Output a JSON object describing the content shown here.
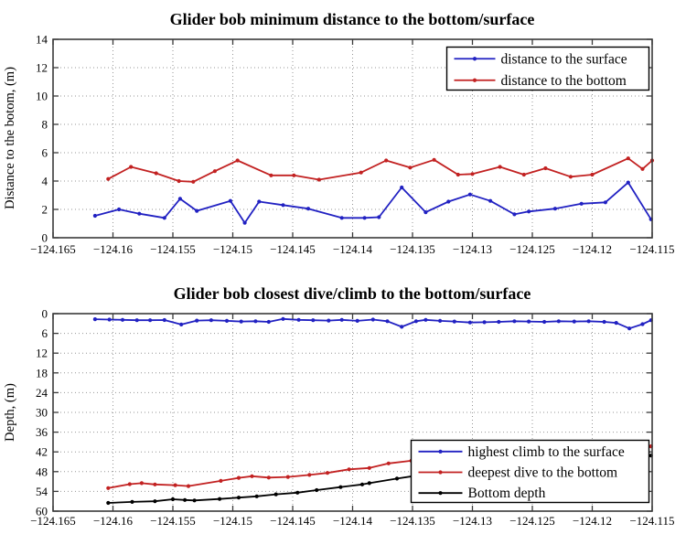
{
  "figure": {
    "background": "#ffffff",
    "title_color": "#821616",
    "frame_color": "#3a3a3a",
    "grid_color": "#969696"
  },
  "chart_data": [
    {
      "type": "line",
      "title": "Glider bob minimum distance to the bottom/surface",
      "xlabel": "",
      "ylabel": "Distance to the botom, (m)",
      "xlim": [
        -124.165,
        -124.115
      ],
      "ylim": [
        0,
        14
      ],
      "y_reversed": false,
      "grid": "dotted",
      "legend_position": "top-right",
      "xticks": [
        -124.165,
        -124.16,
        -124.155,
        -124.15,
        -124.145,
        -124.14,
        -124.135,
        -124.13,
        -124.125,
        -124.12,
        -124.115
      ],
      "xticklabels": [
        "−124.165",
        "−124.16",
        "−124.155",
        "−124.15",
        "−124.145",
        "−124.14",
        "−124.135",
        "−124.13",
        "−124.125",
        "−124.12",
        "−124.115"
      ],
      "yticks": [
        0,
        2,
        4,
        6,
        8,
        10,
        12,
        14
      ],
      "yticklabels": [
        "0",
        "2",
        "4",
        "6",
        "8",
        "10",
        "12",
        "14"
      ],
      "series": [
        {
          "name": "distance to the surface",
          "color": "#2121C2",
          "points": [
            [
              -124.1615,
              1.55
            ],
            [
              -124.1595,
              2.0
            ],
            [
              -124.1578,
              1.7
            ],
            [
              -124.1557,
              1.4
            ],
            [
              -124.1544,
              2.75
            ],
            [
              -124.153,
              1.9
            ],
            [
              -124.1502,
              2.6
            ],
            [
              -124.149,
              1.05
            ],
            [
              -124.1478,
              2.55
            ],
            [
              -124.1458,
              2.3
            ],
            [
              -124.1437,
              2.05
            ],
            [
              -124.1409,
              1.4
            ],
            [
              -124.139,
              1.4
            ],
            [
              -124.1378,
              1.45
            ],
            [
              -124.1359,
              3.55
            ],
            [
              -124.1339,
              1.8
            ],
            [
              -124.132,
              2.55
            ],
            [
              -124.1302,
              3.05
            ],
            [
              -124.1285,
              2.6
            ],
            [
              -124.1265,
              1.65
            ],
            [
              -124.1253,
              1.85
            ],
            [
              -124.1231,
              2.05
            ],
            [
              -124.1209,
              2.4
            ],
            [
              -124.1189,
              2.5
            ],
            [
              -124.117,
              3.9
            ],
            [
              -124.1151,
              1.3
            ]
          ]
        },
        {
          "name": "distance to the bottom",
          "color": "#C22121",
          "points": [
            [
              -124.1604,
              4.15
            ],
            [
              -124.1585,
              5.0
            ],
            [
              -124.1564,
              4.55
            ],
            [
              -124.1545,
              4.0
            ],
            [
              -124.1533,
              3.95
            ],
            [
              -124.1515,
              4.7
            ],
            [
              -124.1496,
              5.45
            ],
            [
              -124.1468,
              4.4
            ],
            [
              -124.1449,
              4.4
            ],
            [
              -124.1428,
              4.1
            ],
            [
              -124.1393,
              4.6
            ],
            [
              -124.1372,
              5.45
            ],
            [
              -124.1352,
              4.95
            ],
            [
              -124.1332,
              5.5
            ],
            [
              -124.1312,
              4.45
            ],
            [
              -124.13,
              4.5
            ],
            [
              -124.1277,
              5.0
            ],
            [
              -124.1257,
              4.45
            ],
            [
              -124.1239,
              4.9
            ],
            [
              -124.1218,
              4.3
            ],
            [
              -124.12,
              4.45
            ],
            [
              -124.117,
              5.6
            ],
            [
              -124.1158,
              4.85
            ],
            [
              -124.115,
              5.45
            ]
          ]
        }
      ]
    },
    {
      "type": "line",
      "title": "Glider bob closest dive/climb to the bottom/surface",
      "xlabel": "",
      "ylabel": "Depth, (m)",
      "xlim": [
        -124.165,
        -124.115
      ],
      "ylim": [
        0,
        60
      ],
      "y_reversed": true,
      "grid": "dotted",
      "legend_position": "bottom-right",
      "xticks": [
        -124.165,
        -124.16,
        -124.155,
        -124.15,
        -124.145,
        -124.14,
        -124.135,
        -124.13,
        -124.125,
        -124.12,
        -124.115
      ],
      "xticklabels": [
        "−124.165",
        "−124.16",
        "−124.155",
        "−124.15",
        "−124.145",
        "−124.14",
        "−124.135",
        "−124.13",
        "−124.125",
        "−124.12",
        "−124.115"
      ],
      "yticks": [
        0,
        6,
        12,
        18,
        24,
        30,
        36,
        42,
        48,
        54,
        60
      ],
      "yticklabels": [
        "0",
        "6",
        "12",
        "18",
        "24",
        "30",
        "36",
        "42",
        "48",
        "54",
        "60"
      ],
      "series": [
        {
          "name": "highest climb to the surface",
          "color": "#2121C2",
          "points": [
            [
              -124.1615,
              1.7
            ],
            [
              -124.1603,
              1.8
            ],
            [
              -124.1592,
              1.9
            ],
            [
              -124.158,
              2.0
            ],
            [
              -124.1569,
              2.0
            ],
            [
              -124.1557,
              1.95
            ],
            [
              -124.1543,
              3.3
            ],
            [
              -124.153,
              2.1
            ],
            [
              -124.1518,
              2.0
            ],
            [
              -124.1505,
              2.2
            ],
            [
              -124.1493,
              2.4
            ],
            [
              -124.1481,
              2.3
            ],
            [
              -124.147,
              2.5
            ],
            [
              -124.1458,
              1.6
            ],
            [
              -124.1445,
              1.9
            ],
            [
              -124.1433,
              2.0
            ],
            [
              -124.142,
              2.1
            ],
            [
              -124.1409,
              1.9
            ],
            [
              -124.1396,
              2.2
            ],
            [
              -124.1383,
              1.8
            ],
            [
              -124.1371,
              2.3
            ],
            [
              -124.1359,
              4.0
            ],
            [
              -124.1347,
              2.3
            ],
            [
              -124.1339,
              1.9
            ],
            [
              -124.1327,
              2.2
            ],
            [
              -124.1315,
              2.4
            ],
            [
              -124.1302,
              2.7
            ],
            [
              -124.129,
              2.6
            ],
            [
              -124.1278,
              2.5
            ],
            [
              -124.1265,
              2.3
            ],
            [
              -124.1253,
              2.4
            ],
            [
              -124.124,
              2.5
            ],
            [
              -124.1228,
              2.3
            ],
            [
              -124.1215,
              2.4
            ],
            [
              -124.1203,
              2.3
            ],
            [
              -124.119,
              2.5
            ],
            [
              -124.118,
              2.8
            ],
            [
              -124.1169,
              4.5
            ],
            [
              -124.1158,
              3.2
            ],
            [
              -124.1151,
              2.0
            ]
          ]
        },
        {
          "name": "deepest dive to the bottom",
          "color": "#C22121",
          "points": [
            [
              -124.1604,
              53.0
            ],
            [
              -124.1586,
              51.8
            ],
            [
              -124.1576,
              51.5
            ],
            [
              -124.1565,
              51.9
            ],
            [
              -124.1548,
              52.1
            ],
            [
              -124.1537,
              52.4
            ],
            [
              -124.151,
              50.8
            ],
            [
              -124.1495,
              49.9
            ],
            [
              -124.1484,
              49.4
            ],
            [
              -124.147,
              49.8
            ],
            [
              -124.1454,
              49.6
            ],
            [
              -124.1436,
              49.0
            ],
            [
              -124.1421,
              48.4
            ],
            [
              -124.1403,
              47.3
            ],
            [
              -124.1386,
              46.9
            ],
            [
              -124.137,
              45.5
            ],
            [
              -124.1351,
              44.7
            ],
            [
              -124.133,
              44.2
            ],
            [
              -124.131,
              43.6
            ],
            [
              -124.129,
              43.1
            ],
            [
              -124.127,
              42.6
            ],
            [
              -124.125,
              42.1
            ],
            [
              -124.123,
              41.7
            ],
            [
              -124.121,
              41.3
            ],
            [
              -124.119,
              40.9
            ],
            [
              -124.117,
              40.6
            ],
            [
              -124.1151,
              40.3
            ]
          ]
        },
        {
          "name": "Bottom depth",
          "color": "#000000",
          "points": [
            [
              -124.1604,
              57.5
            ],
            [
              -124.1584,
              57.2
            ],
            [
              -124.1565,
              57.0
            ],
            [
              -124.155,
              56.4
            ],
            [
              -124.154,
              56.6
            ],
            [
              -124.1532,
              56.75
            ],
            [
              -124.1511,
              56.3
            ],
            [
              -124.1495,
              55.9
            ],
            [
              -124.148,
              55.5
            ],
            [
              -124.1464,
              54.9
            ],
            [
              -124.1446,
              54.4
            ],
            [
              -124.143,
              53.6
            ],
            [
              -124.141,
              52.7
            ],
            [
              -124.1392,
              51.9
            ],
            [
              -124.1386,
              51.5
            ],
            [
              -124.1363,
              50.1
            ],
            [
              -124.135,
              49.4
            ],
            [
              -124.133,
              48.5
            ],
            [
              -124.131,
              47.7
            ],
            [
              -124.129,
              46.9
            ],
            [
              -124.127,
              46.2
            ],
            [
              -124.125,
              45.5
            ],
            [
              -124.123,
              44.9
            ],
            [
              -124.121,
              44.3
            ],
            [
              -124.119,
              43.8
            ],
            [
              -124.117,
              43.4
            ],
            [
              -124.1151,
              43.1
            ]
          ]
        }
      ]
    }
  ]
}
